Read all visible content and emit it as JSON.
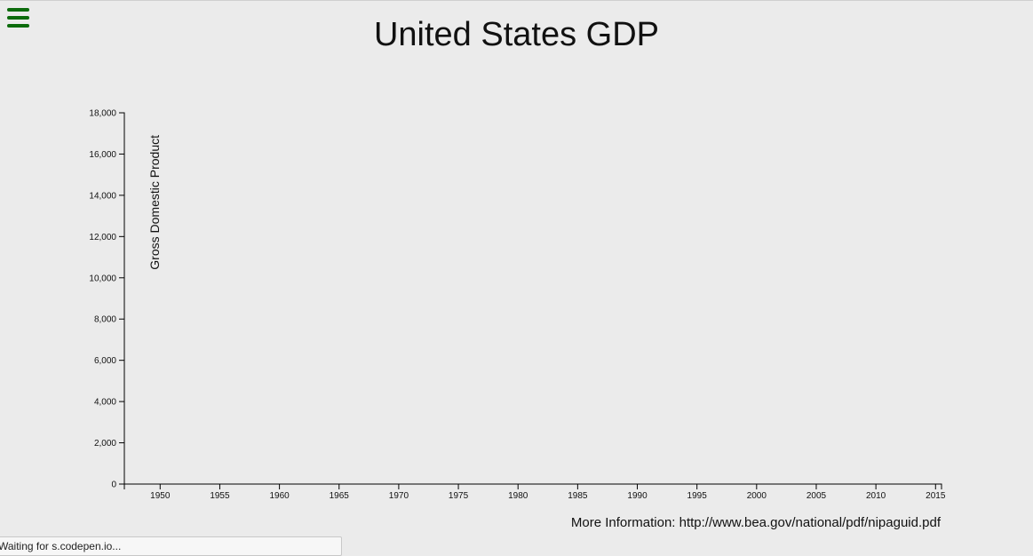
{
  "menu": {
    "icon": "hamburger-menu-icon",
    "color": "#0c6b0c"
  },
  "title": "United States GDP",
  "more_info": "More Information: http://www.bea.gov/national/pdf/nipaguid.pdf",
  "status_text": "Waiting for s.codepen.io...",
  "chart_data": {
    "type": "bar",
    "title": "United States GDP",
    "xlabel": "",
    "ylabel": "Gross Domestic Product",
    "xlim": [
      1947,
      2015.5
    ],
    "ylim": [
      0,
      18000
    ],
    "x_ticks": [
      "1950",
      "1955",
      "1960",
      "1965",
      "1970",
      "1975",
      "1980",
      "1985",
      "1990",
      "1995",
      "2000",
      "2005",
      "2010",
      "2015"
    ],
    "y_ticks": [
      "0",
      "2,000",
      "4,000",
      "6,000",
      "8,000",
      "10,000",
      "12,000",
      "14,000",
      "16,000",
      "18,000"
    ],
    "values": [],
    "grid": false
  }
}
